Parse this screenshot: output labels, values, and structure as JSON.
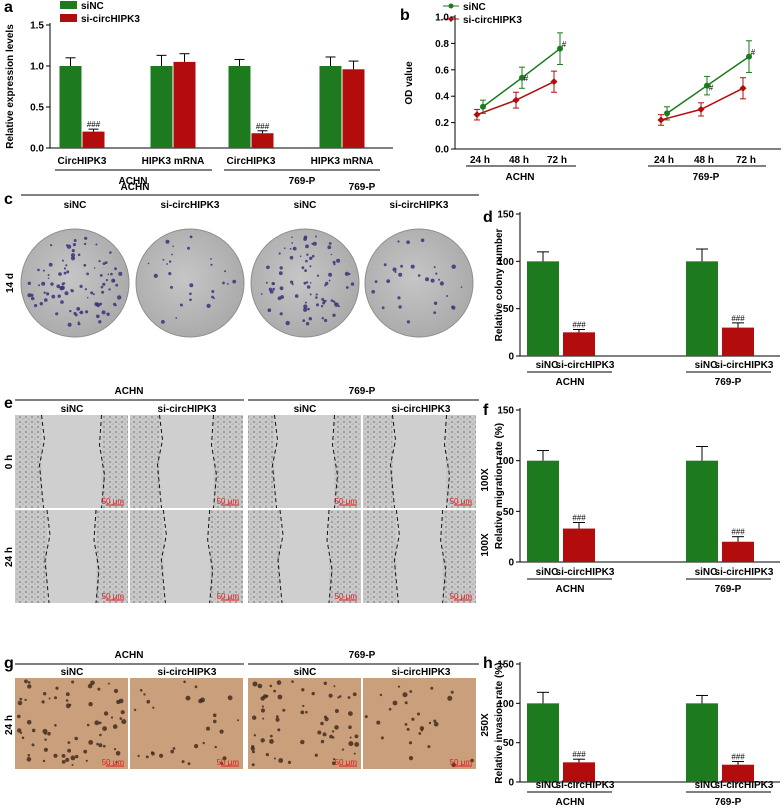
{
  "colors": {
    "siNC": "#1e7a1e",
    "si": "#b30c0c",
    "dish": "#b9b9b9",
    "wound": "#c8c8c8",
    "invasion": "#c99f7c"
  },
  "panel_letters": [
    "a",
    "b",
    "c",
    "d",
    "e",
    "f",
    "g",
    "h"
  ],
  "groups": {
    "achn": "ACHN",
    "p769": "769-P",
    "siNC": "siNC",
    "si": "si-circHIPK3"
  },
  "times": {
    "d14": "14 d",
    "h0": "0 h",
    "h24": "24 h"
  },
  "magnifications": {
    "e": "100X",
    "e2": "100X",
    "g": "250X"
  },
  "scale_bar": "50 μm",
  "chart_data": [
    {
      "type": "bar",
      "panel": "a",
      "ylabel": "Relative expression levels",
      "ylim": [
        0,
        1.5
      ],
      "yticks": [
        0.0,
        0.5,
        1.0,
        1.5
      ],
      "categories": [
        "CircHIPK3",
        "HIPK3 mRNA",
        "CircHIPK3",
        "HIPK3 mRNA"
      ],
      "group_labels": [
        "ACHN",
        "769-P"
      ],
      "series": [
        {
          "name": "siNC",
          "color": "#1e7a1e",
          "values": [
            1.0,
            1.0,
            1.0,
            1.0
          ],
          "errors": [
            0.1,
            0.13,
            0.08,
            0.11
          ]
        },
        {
          "name": "si-circHIPK3",
          "color": "#b30c0c",
          "values": [
            0.2,
            1.05,
            0.18,
            0.96
          ],
          "errors": [
            0.03,
            0.1,
            0.03,
            0.1
          ]
        }
      ],
      "annotations": [
        "###",
        "",
        "###",
        ""
      ]
    },
    {
      "type": "line",
      "panel": "b",
      "ylabel": "OD value",
      "ylim": [
        0,
        1.0
      ],
      "yticks": [
        0.0,
        0.2,
        0.4,
        0.6,
        0.8,
        1.0
      ],
      "x": [
        "24 h",
        "48 h",
        "72 h"
      ],
      "group_labels": [
        "ACHN",
        "769-P"
      ],
      "series": [
        {
          "name": "siNC",
          "color": "#1e7a1e",
          "groups": [
            {
              "values": [
                0.32,
                0.54,
                0.76
              ],
              "errors": [
                0.05,
                0.08,
                0.12
              ]
            },
            {
              "values": [
                0.27,
                0.48,
                0.7
              ],
              "errors": [
                0.05,
                0.07,
                0.12
              ]
            }
          ]
        },
        {
          "name": "si-circHIPK3",
          "color": "#b30c0c",
          "groups": [
            {
              "values": [
                0.26,
                0.37,
                0.51
              ],
              "errors": [
                0.04,
                0.06,
                0.08
              ]
            },
            {
              "values": [
                0.22,
                0.3,
                0.46
              ],
              "errors": [
                0.04,
                0.05,
                0.08
              ]
            }
          ]
        }
      ],
      "annotations": [
        "",
        "#",
        "#"
      ]
    },
    {
      "type": "bar",
      "panel": "d",
      "ylabel": "Relative colony number",
      "ylim": [
        0,
        150
      ],
      "yticks": [
        0,
        50,
        100,
        150
      ],
      "categories": [
        "siNC",
        "si-circHIPK3",
        "siNC",
        "si-circHIPK3"
      ],
      "group_labels": [
        "ACHN",
        "769-P"
      ],
      "values": [
        100,
        25,
        100,
        30
      ],
      "errors": [
        10,
        3,
        13,
        5
      ],
      "colors": [
        "#1e7a1e",
        "#b30c0c",
        "#1e7a1e",
        "#b30c0c"
      ],
      "annotations": [
        "",
        "###",
        "",
        "###"
      ]
    },
    {
      "type": "bar",
      "panel": "f",
      "ylabel": "Relative migration rate (%)",
      "ylim": [
        0,
        150
      ],
      "yticks": [
        0,
        50,
        100,
        150
      ],
      "categories": [
        "siNC",
        "si-circHIPK3",
        "siNC",
        "si-circHIPK3"
      ],
      "group_labels": [
        "ACHN",
        "769-P"
      ],
      "values": [
        100,
        33,
        100,
        20
      ],
      "errors": [
        10,
        6,
        14,
        5
      ],
      "colors": [
        "#1e7a1e",
        "#b30c0c",
        "#1e7a1e",
        "#b30c0c"
      ],
      "annotations": [
        "",
        "###",
        "",
        "###"
      ]
    },
    {
      "type": "bar",
      "panel": "h",
      "ylabel": "Relative invasion rate (%)",
      "ylim": [
        0,
        150
      ],
      "yticks": [
        0,
        50,
        100,
        150
      ],
      "categories": [
        "siNC",
        "si-circHIPK3",
        "siNC",
        "si-circHIPK3"
      ],
      "group_labels": [
        "ACHN",
        "769-P"
      ],
      "values": [
        100,
        25,
        100,
        22
      ],
      "errors": [
        14,
        4,
        10,
        4
      ],
      "colors": [
        "#1e7a1e",
        "#b30c0c",
        "#1e7a1e",
        "#b30c0c"
      ],
      "annotations": [
        "",
        "###",
        "",
        "###"
      ]
    }
  ]
}
